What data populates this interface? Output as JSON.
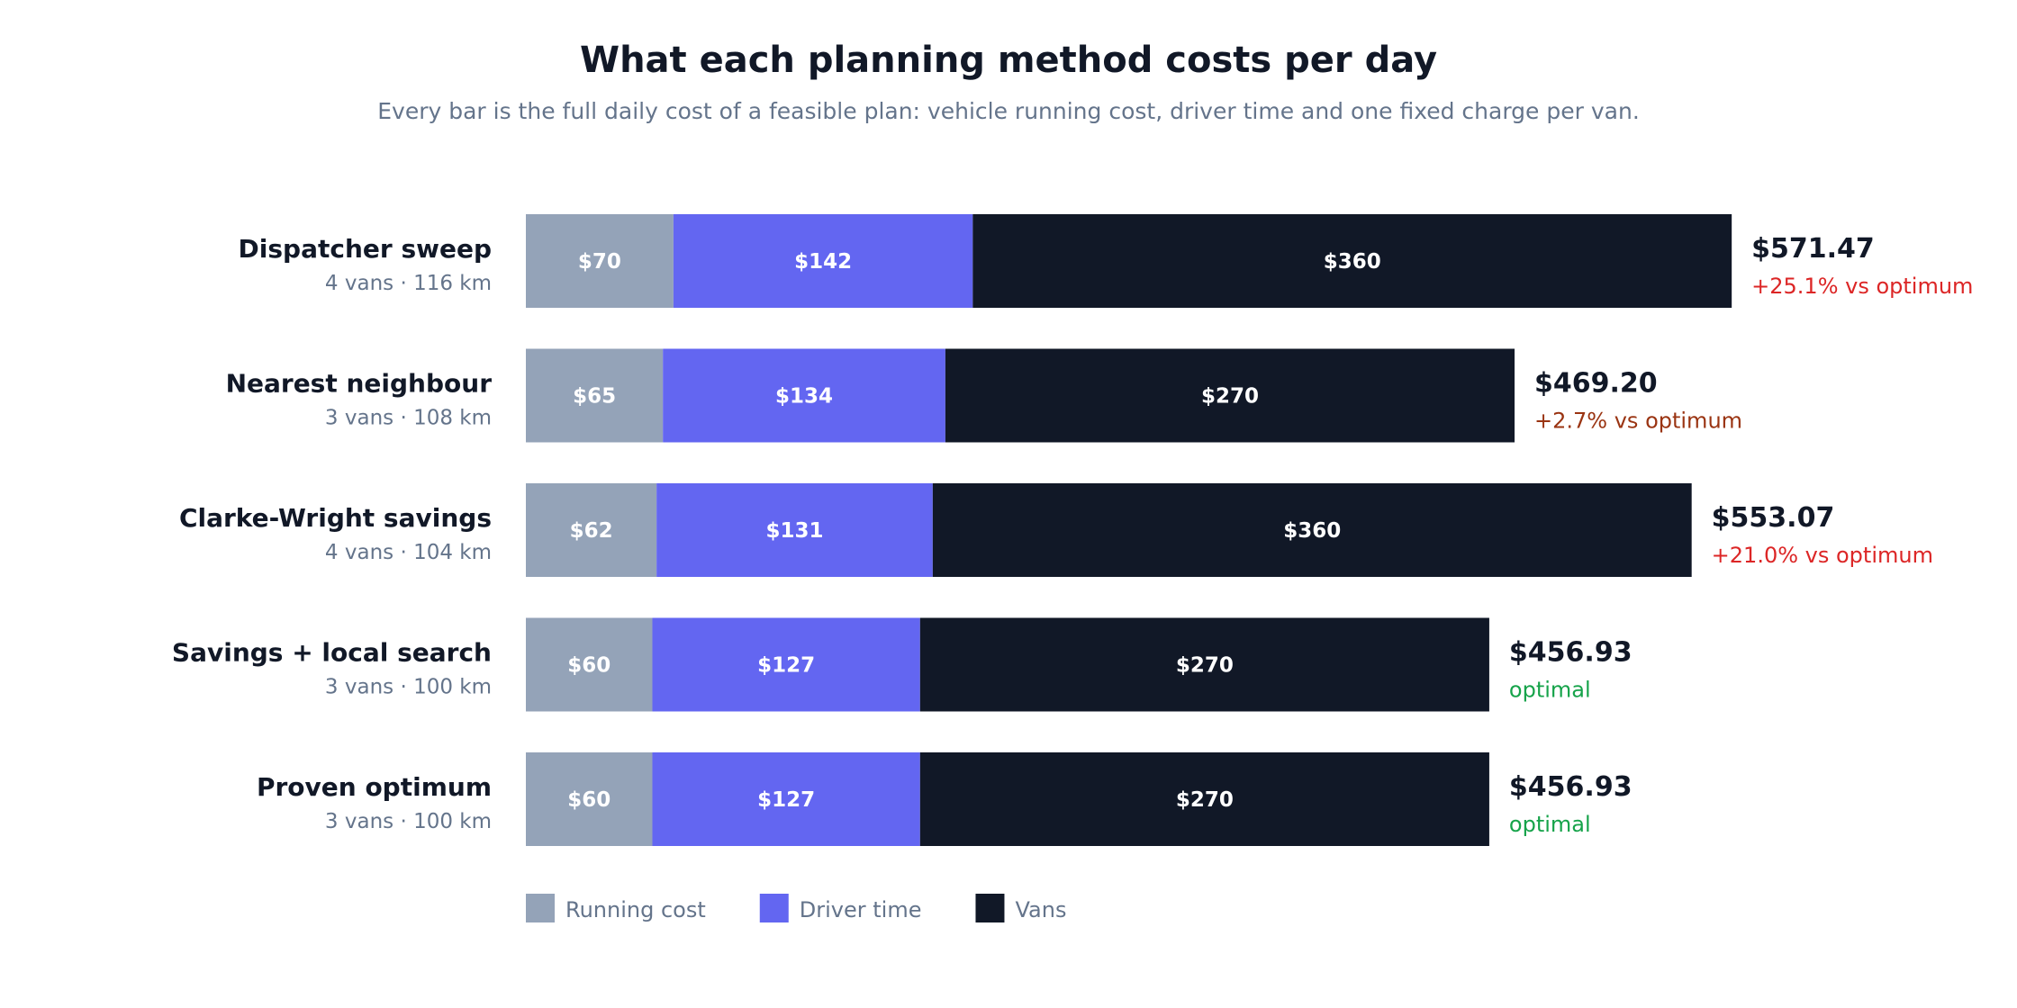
{
  "chart_data": {
    "type": "bar",
    "orientation": "horizontal",
    "stacked": true,
    "title": "What each planning method costs per day",
    "subtitle": "Every bar is the full daily cost of a feasible plan: vehicle running cost, driver time and one fixed charge per van.",
    "categories": [
      "Dispatcher sweep",
      "Nearest neighbour",
      "Clarke-Wright savings",
      "Savings + local search",
      "Proven optimum"
    ],
    "category_details": [
      "4 vans · 116 km",
      "3 vans · 108 km",
      "4 vans · 104 km",
      "3 vans · 100 km",
      "3 vans · 100 km"
    ],
    "series": [
      {
        "name": "Running cost",
        "color": "#94a3b8",
        "values": [
          70,
          65,
          62,
          60,
          60
        ],
        "labels": [
          "$70",
          "$65",
          "$62",
          "$60",
          "$60"
        ]
      },
      {
        "name": "Driver time",
        "color": "#6366f1",
        "values": [
          142,
          134,
          131,
          127,
          127
        ],
        "labels": [
          "$142",
          "$134",
          "$131",
          "$127",
          "$127"
        ]
      },
      {
        "name": "Vans",
        "color": "#111827",
        "values": [
          360,
          270,
          360,
          270,
          270
        ],
        "labels": [
          "$360",
          "$270",
          "$360",
          "$270",
          "$270"
        ]
      }
    ],
    "totals": [
      571.47,
      469.2,
      553.07,
      456.93,
      456.93
    ],
    "total_labels": [
      "$571.47",
      "$469.20",
      "$553.07",
      "$456.93",
      "$456.93"
    ],
    "deltas": [
      {
        "text": "+25.1% vs optimum",
        "color": "#dc2626"
      },
      {
        "text": "+2.7% vs optimum",
        "color": "#9a3412"
      },
      {
        "text": "+21.0% vs optimum",
        "color": "#dc2626"
      },
      {
        "text": "optimal",
        "color": "#16a34a"
      },
      {
        "text": "optimal",
        "color": "#16a34a"
      }
    ],
    "legend": {
      "position": "bottom-left"
    },
    "grid": false
  }
}
